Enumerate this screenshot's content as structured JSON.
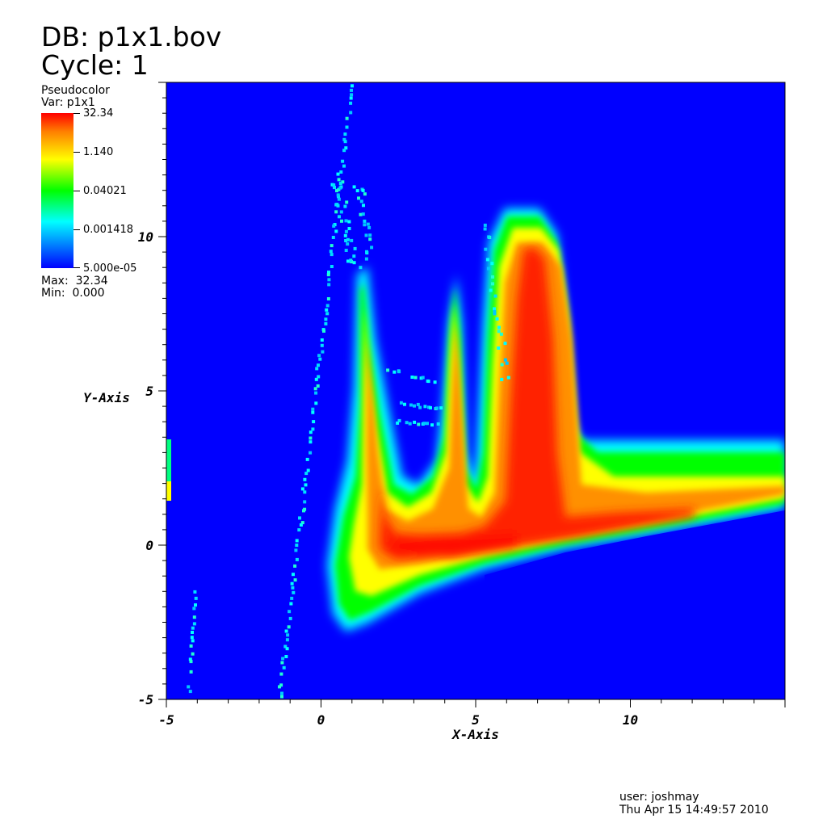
{
  "header": {
    "db_line": "DB: p1x1.bov",
    "cycle_line": "Cycle: 1"
  },
  "legend": {
    "plot_type": "Pseudocolor",
    "var_label": "Var: p1x1",
    "tick_labels": [
      "32.34",
      "1.140",
      "0.04021",
      "0.001418",
      "5.000e-05"
    ],
    "max_label": "Max:",
    "max_value": "32.34",
    "min_label": "Min:",
    "min_value": "0.000",
    "scale": "log"
  },
  "footer": {
    "user": "user: joshmay",
    "datetime": "Thu Apr 15 14:49:57 2010"
  },
  "colors": {
    "background": "#0000ff",
    "low": "#00ffff",
    "mid": "#00ff00",
    "high": "#ffff00",
    "peak": "#ff0000"
  },
  "chart_data": {
    "type": "heatmap",
    "xlabel": "X-Axis",
    "ylabel": "Y-Axis",
    "xlim": [
      -5,
      15
    ],
    "ylim": [
      -5,
      15
    ],
    "x_ticks": [
      {
        "value": -5,
        "label": "-5"
      },
      {
        "value": 0,
        "label": "0"
      },
      {
        "value": 5,
        "label": "5"
      },
      {
        "value": 10,
        "label": "10"
      }
    ],
    "y_ticks": [
      {
        "value": -5,
        "label": "-5"
      },
      {
        "value": 0,
        "label": "0"
      },
      {
        "value": 5,
        "label": "5"
      },
      {
        "value": 10,
        "label": "10"
      }
    ],
    "value_range": [
      0.0,
      32.34
    ],
    "peaks": [
      {
        "x": 1.4,
        "y": 8.8
      },
      {
        "x": 4.5,
        "y": 8.6
      },
      {
        "x": 6.6,
        "y": 10.9
      }
    ]
  }
}
